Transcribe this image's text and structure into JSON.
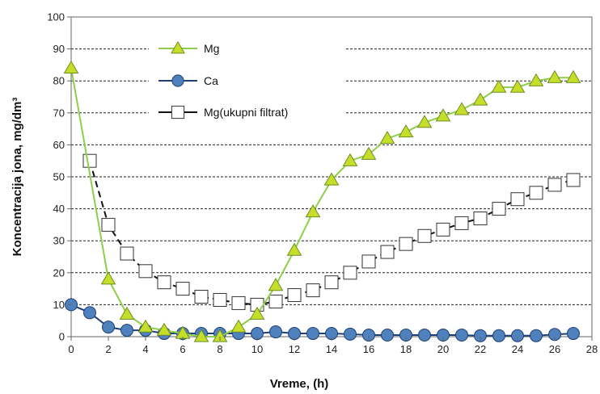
{
  "chart_data": {
    "type": "line",
    "xlabel": "Vreme, (h)",
    "ylabel": "Koncentracija jona, mg/dm³",
    "xlim": [
      0,
      28
    ],
    "ylim": [
      0,
      100
    ],
    "xticks": [
      0,
      2,
      4,
      6,
      8,
      10,
      12,
      14,
      16,
      18,
      20,
      22,
      24,
      26,
      28
    ],
    "yticks": [
      0,
      10,
      20,
      30,
      40,
      50,
      60,
      70,
      80,
      90,
      100
    ],
    "grid": "horizontal dashed",
    "legend_position": "top-center",
    "series": [
      {
        "name": "Mg",
        "marker": "triangle",
        "line_color": "#8fce4a",
        "marker_fill": "#c6de2a",
        "marker_stroke": "#6b8e23",
        "x": [
          0,
          2,
          3,
          4,
          5,
          6,
          7,
          8,
          9,
          10,
          11,
          12,
          13,
          14,
          15,
          16,
          17,
          18,
          19,
          20,
          21,
          22,
          23,
          24,
          25,
          26,
          27
        ],
        "y": [
          84,
          18,
          7,
          3,
          2,
          1,
          0,
          0,
          3,
          7,
          16,
          27,
          39,
          49,
          55,
          57,
          62,
          64,
          67,
          69,
          71,
          74,
          78,
          78,
          80,
          81,
          81
        ]
      },
      {
        "name": "Ca",
        "marker": "circle",
        "line_color": "#1f3f75",
        "marker_fill": "#4f81bd",
        "marker_stroke": "#1f3f75",
        "x": [
          0,
          1,
          2,
          3,
          4,
          5,
          6,
          7,
          8,
          9,
          10,
          11,
          12,
          13,
          14,
          15,
          16,
          17,
          18,
          19,
          20,
          21,
          22,
          23,
          24,
          25,
          26,
          27
        ],
        "y": [
          10,
          7.5,
          3,
          2,
          2,
          1,
          1,
          1,
          1,
          1,
          1,
          1.5,
          1,
          1,
          1,
          0.8,
          0.5,
          0.5,
          0.5,
          0.5,
          0.5,
          0.5,
          0.3,
          0.3,
          0.3,
          0.3,
          0.7,
          1
        ]
      },
      {
        "name": "Mg(ukupni filtrat)",
        "marker": "square",
        "line_color": "#111111",
        "line_dash": "8,5",
        "marker_fill": "#ffffff",
        "marker_stroke": "#333333",
        "x": [
          1,
          2,
          3,
          4,
          5,
          6,
          7,
          8,
          9,
          10,
          11,
          12,
          13,
          14,
          15,
          16,
          17,
          18,
          19,
          20,
          21,
          22,
          23,
          24,
          25,
          26,
          27
        ],
        "y": [
          55,
          35,
          26,
          20.5,
          17,
          15,
          12.5,
          11.5,
          10.5,
          10,
          11,
          13,
          14.5,
          17,
          20,
          23.5,
          26.5,
          29,
          31.5,
          33.5,
          35.5,
          37,
          40,
          43,
          45,
          47.5,
          49
        ]
      }
    ]
  }
}
